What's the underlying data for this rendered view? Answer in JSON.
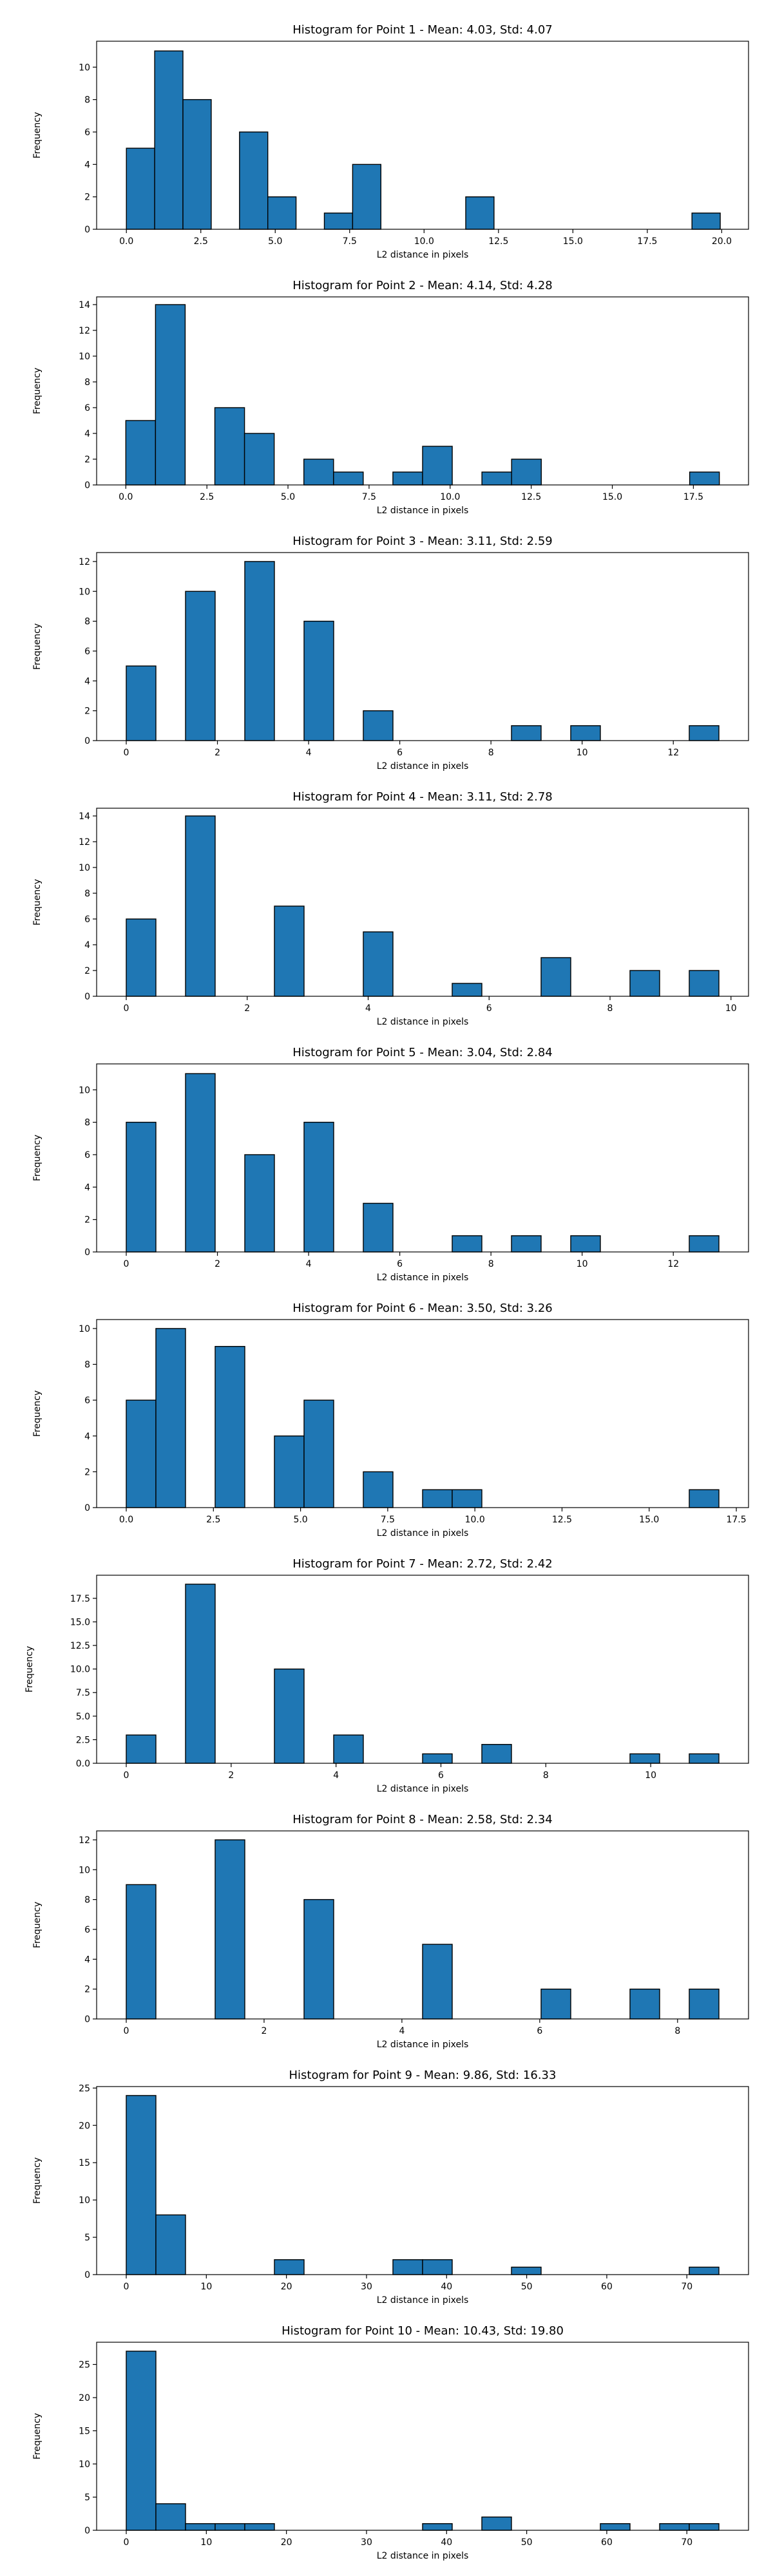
{
  "style": {
    "bar_fill": "#1f77b4",
    "bar_edge": "#000000",
    "axis_color": "#000000"
  },
  "chart_data": [
    {
      "type": "bar",
      "title": "Histogram for Point 1 - Mean: 4.03, Std: 4.07",
      "xlabel": "L2 distance in pixels",
      "ylabel": "Frequency",
      "xlim": [
        -1.0,
        20.9
      ],
      "ylim": [
        0,
        11.6
      ],
      "xticks": [
        0.0,
        2.5,
        5.0,
        7.5,
        10.0,
        12.5,
        15.0,
        17.5,
        20.0
      ],
      "xtick_labels": [
        "0.0",
        "2.5",
        "5.0",
        "7.5",
        "10.0",
        "12.5",
        "15.0",
        "17.5",
        "20.0"
      ],
      "yticks": [
        0,
        2,
        4,
        6,
        8,
        10
      ],
      "ytick_labels": [
        "0",
        "2",
        "4",
        "6",
        "8",
        "10"
      ],
      "bin_edges": [
        0.0,
        0.95,
        1.9,
        2.85,
        3.8,
        4.75,
        5.7,
        6.65,
        7.6,
        8.55,
        9.5,
        10.45,
        11.4,
        12.35,
        13.3,
        14.25,
        15.2,
        16.15,
        17.1,
        18.05,
        19.0,
        19.95
      ],
      "values": [
        5,
        11,
        8,
        0,
        6,
        2,
        0,
        1,
        4,
        0,
        0,
        0,
        2,
        0,
        0,
        0,
        0,
        0,
        0,
        0,
        1
      ]
    },
    {
      "type": "bar",
      "title": "Histogram for Point 2 - Mean: 4.14, Std: 4.28",
      "xlabel": "L2 distance in pixels",
      "ylabel": "Frequency",
      "xlim": [
        -0.9,
        19.2
      ],
      "ylim": [
        0,
        14.6
      ],
      "xticks": [
        0.0,
        2.5,
        5.0,
        7.5,
        10.0,
        12.5,
        15.0,
        17.5
      ],
      "xtick_labels": [
        "0.0",
        "2.5",
        "5.0",
        "7.5",
        "10.0",
        "12.5",
        "15.0",
        "17.5"
      ],
      "yticks": [
        0,
        2,
        4,
        6,
        8,
        10,
        12,
        14
      ],
      "ytick_labels": [
        "0",
        "2",
        "4",
        "6",
        "8",
        "10",
        "12",
        "14"
      ],
      "bin_edges": [
        0.0,
        0.915,
        1.83,
        2.745,
        3.66,
        4.575,
        5.49,
        6.405,
        7.32,
        8.235,
        9.15,
        10.065,
        10.98,
        11.895,
        12.81,
        13.725,
        14.64,
        15.555,
        16.47,
        17.385,
        18.3
      ],
      "values": [
        5,
        14,
        0,
        6,
        4,
        0,
        2,
        1,
        0,
        1,
        3,
        0,
        1,
        2,
        0,
        0,
        0,
        0,
        0,
        1
      ]
    },
    {
      "type": "bar",
      "title": "Histogram for Point 3 - Mean: 3.11, Std: 2.59",
      "xlabel": "L2 distance in pixels",
      "ylabel": "Frequency",
      "xlim": [
        -0.65,
        13.65
      ],
      "ylim": [
        0,
        12.6
      ],
      "xticks": [
        0,
        2,
        4,
        6,
        8,
        10,
        12
      ],
      "xtick_labels": [
        "0",
        "2",
        "4",
        "6",
        "8",
        "10",
        "12"
      ],
      "yticks": [
        0,
        2,
        4,
        6,
        8,
        10,
        12
      ],
      "ytick_labels": [
        "0",
        "2",
        "4",
        "6",
        "8",
        "10",
        "12"
      ],
      "bin_edges": [
        0.0,
        0.65,
        1.3,
        1.95,
        2.6,
        3.25,
        3.9,
        4.55,
        5.2,
        5.85,
        6.5,
        7.15,
        7.8,
        8.45,
        9.1,
        9.75,
        10.4,
        11.05,
        11.7,
        12.35,
        13.0
      ],
      "values": [
        5,
        0,
        10,
        0,
        12,
        0,
        8,
        0,
        2,
        0,
        0,
        0,
        0,
        1,
        0,
        1,
        0,
        0,
        0,
        1
      ]
    },
    {
      "type": "bar",
      "title": "Histogram for Point 4 - Mean: 3.11, Std: 2.78",
      "xlabel": "L2 distance in pixels",
      "ylabel": "Frequency",
      "xlim": [
        -0.49,
        10.29
      ],
      "ylim": [
        0,
        14.6
      ],
      "xticks": [
        0,
        2,
        4,
        6,
        8,
        10
      ],
      "xtick_labels": [
        "0",
        "2",
        "4",
        "6",
        "8",
        "10"
      ],
      "yticks": [
        0,
        2,
        4,
        6,
        8,
        10,
        12,
        14
      ],
      "ytick_labels": [
        "0",
        "2",
        "4",
        "6",
        "8",
        "10",
        "12",
        "14"
      ],
      "bin_edges": [
        0.0,
        0.49,
        0.98,
        1.47,
        1.96,
        2.45,
        2.94,
        3.43,
        3.92,
        4.41,
        4.9,
        5.39,
        5.88,
        6.37,
        6.86,
        7.35,
        7.84,
        8.33,
        8.82,
        9.31,
        9.8
      ],
      "values": [
        6,
        0,
        14,
        0,
        0,
        7,
        0,
        0,
        5,
        0,
        0,
        1,
        0,
        0,
        3,
        0,
        0,
        2,
        0,
        2
      ]
    },
    {
      "type": "bar",
      "title": "Histogram for Point 5 - Mean: 3.04, Std: 2.84",
      "xlabel": "L2 distance in pixels",
      "ylabel": "Frequency",
      "xlim": [
        -0.65,
        13.65
      ],
      "ylim": [
        0,
        11.6
      ],
      "xticks": [
        0,
        2,
        4,
        6,
        8,
        10,
        12
      ],
      "xtick_labels": [
        "0",
        "2",
        "4",
        "6",
        "8",
        "10",
        "12"
      ],
      "yticks": [
        0,
        2,
        4,
        6,
        8,
        10
      ],
      "ytick_labels": [
        "0",
        "2",
        "4",
        "6",
        "8",
        "10"
      ],
      "bin_edges": [
        0.0,
        0.65,
        1.3,
        1.95,
        2.6,
        3.25,
        3.9,
        4.55,
        5.2,
        5.85,
        6.5,
        7.15,
        7.8,
        8.45,
        9.1,
        9.75,
        10.4,
        11.05,
        11.7,
        12.35,
        13.0
      ],
      "values": [
        8,
        0,
        11,
        0,
        6,
        0,
        8,
        0,
        3,
        0,
        0,
        1,
        0,
        1,
        0,
        1,
        0,
        0,
        0,
        1
      ]
    },
    {
      "type": "bar",
      "title": "Histogram for Point 6 - Mean: 3.50, Std: 3.26",
      "xlabel": "L2 distance in pixels",
      "ylabel": "Frequency",
      "xlim": [
        -0.85,
        17.85
      ],
      "ylim": [
        0,
        10.5
      ],
      "xticks": [
        0.0,
        2.5,
        5.0,
        7.5,
        10.0,
        12.5,
        15.0,
        17.5
      ],
      "xtick_labels": [
        "0.0",
        "2.5",
        "5.0",
        "7.5",
        "10.0",
        "12.5",
        "15.0",
        "17.5"
      ],
      "yticks": [
        0,
        2,
        4,
        6,
        8,
        10
      ],
      "ytick_labels": [
        "0",
        "2",
        "4",
        "6",
        "8",
        "10"
      ],
      "bin_edges": [
        0.0,
        0.85,
        1.7,
        2.55,
        3.4,
        4.25,
        5.1,
        5.95,
        6.8,
        7.65,
        8.5,
        9.35,
        10.2,
        11.05,
        11.9,
        12.75,
        13.6,
        14.45,
        15.3,
        16.15,
        17.0
      ],
      "values": [
        6,
        10,
        0,
        9,
        0,
        4,
        6,
        0,
        2,
        0,
        1,
        1,
        0,
        0,
        0,
        0,
        0,
        0,
        0,
        1
      ]
    },
    {
      "type": "bar",
      "title": "Histogram for Point 7 - Mean: 2.72, Std: 2.42",
      "xlabel": "L2 distance in pixels",
      "ylabel": "Frequency",
      "xlim": [
        -0.565,
        11.865
      ],
      "ylim": [
        0,
        19.95
      ],
      "xticks": [
        0,
        2,
        4,
        6,
        8,
        10
      ],
      "xtick_labels": [
        "0",
        "2",
        "4",
        "6",
        "8",
        "10"
      ],
      "yticks": [
        0.0,
        2.5,
        5.0,
        7.5,
        10.0,
        12.5,
        15.0,
        17.5
      ],
      "ytick_labels": [
        "0.0",
        "2.5",
        "5.0",
        "7.5",
        "10.0",
        "12.5",
        "15.0",
        "17.5"
      ],
      "bin_edges": [
        0.0,
        0.565,
        1.13,
        1.695,
        2.26,
        2.825,
        3.39,
        3.955,
        4.52,
        5.085,
        5.65,
        6.215,
        6.78,
        7.345,
        7.91,
        8.475,
        9.04,
        9.605,
        10.17,
        10.735,
        11.3
      ],
      "values": [
        3,
        0,
        19,
        0,
        0,
        10,
        0,
        3,
        0,
        0,
        1,
        0,
        2,
        0,
        0,
        0,
        0,
        1,
        0,
        1
      ]
    },
    {
      "type": "bar",
      "title": "Histogram for Point 8 - Mean: 2.58, Std: 2.34",
      "xlabel": "L2 distance in pixels",
      "ylabel": "Frequency",
      "xlim": [
        -0.43,
        9.03
      ],
      "ylim": [
        0,
        12.6
      ],
      "xticks": [
        0,
        2,
        4,
        6,
        8
      ],
      "xtick_labels": [
        "0",
        "2",
        "4",
        "6",
        "8"
      ],
      "yticks": [
        0,
        2,
        4,
        6,
        8,
        10,
        12
      ],
      "ytick_labels": [
        "0",
        "2",
        "4",
        "6",
        "8",
        "10",
        "12"
      ],
      "bin_edges": [
        0.0,
        0.43,
        0.86,
        1.29,
        1.72,
        2.15,
        2.58,
        3.01,
        3.44,
        3.87,
        4.3,
        4.73,
        5.16,
        5.59,
        6.02,
        6.45,
        6.88,
        7.31,
        7.74,
        8.17,
        8.6
      ],
      "values": [
        9,
        0,
        0,
        12,
        0,
        0,
        8,
        0,
        0,
        0,
        5,
        0,
        0,
        0,
        2,
        0,
        0,
        2,
        0,
        2
      ]
    },
    {
      "type": "bar",
      "title": "Histogram for Point 9 - Mean: 9.86, Std: 16.33",
      "xlabel": "L2 distance in pixels",
      "ylabel": "Frequency",
      "xlim": [
        -3.7,
        77.7
      ],
      "ylim": [
        0,
        25.2
      ],
      "xticks": [
        0,
        10,
        20,
        30,
        40,
        50,
        60,
        70
      ],
      "xtick_labels": [
        "0",
        "10",
        "20",
        "30",
        "40",
        "50",
        "60",
        "70"
      ],
      "yticks": [
        0,
        5,
        10,
        15,
        20,
        25
      ],
      "ytick_labels": [
        "0",
        "5",
        "10",
        "15",
        "20",
        "25"
      ],
      "bin_edges": [
        0.0,
        3.7,
        7.4,
        11.1,
        14.8,
        18.5,
        22.2,
        25.9,
        29.6,
        33.3,
        37.0,
        40.7,
        44.4,
        48.1,
        51.8,
        55.5,
        59.2,
        62.9,
        66.6,
        70.3,
        74.0
      ],
      "values": [
        24,
        8,
        0,
        0,
        0,
        2,
        0,
        0,
        0,
        2,
        2,
        0,
        0,
        1,
        0,
        0,
        0,
        0,
        0,
        1
      ]
    },
    {
      "type": "bar",
      "title": "Histogram for Point 10 - Mean: 10.43, Std: 19.80",
      "xlabel": "L2 distance in pixels",
      "ylabel": "Frequency",
      "xlim": [
        -3.7,
        77.7
      ],
      "ylim": [
        0,
        28.35
      ],
      "xticks": [
        0,
        10,
        20,
        30,
        40,
        50,
        60,
        70
      ],
      "xtick_labels": [
        "0",
        "10",
        "20",
        "30",
        "40",
        "50",
        "60",
        "70"
      ],
      "yticks": [
        0,
        5,
        10,
        15,
        20,
        25
      ],
      "ytick_labels": [
        "0",
        "5",
        "10",
        "15",
        "20",
        "25"
      ],
      "bin_edges": [
        0.0,
        3.7,
        7.4,
        11.1,
        14.8,
        18.5,
        22.2,
        25.9,
        29.6,
        33.3,
        37.0,
        40.7,
        44.4,
        48.1,
        51.8,
        55.5,
        59.2,
        62.9,
        66.6,
        70.3,
        74.0
      ],
      "values": [
        27,
        4,
        1,
        1,
        1,
        0,
        0,
        0,
        0,
        0,
        1,
        0,
        2,
        0,
        0,
        0,
        1,
        0,
        1,
        1
      ]
    }
  ]
}
